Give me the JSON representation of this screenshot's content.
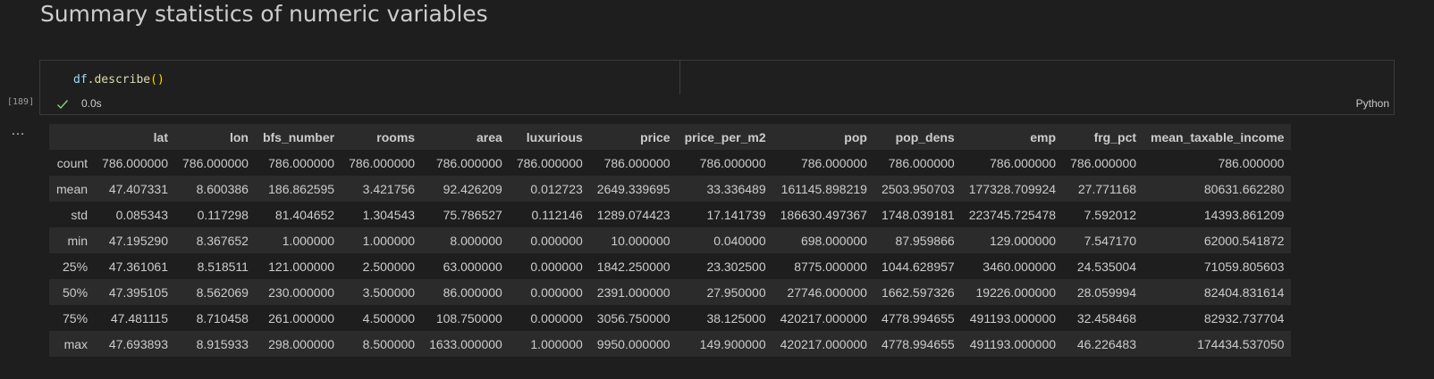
{
  "markdown": {
    "heading": "Summary statistics of numeric variables"
  },
  "cell": {
    "code": {
      "var": "df",
      "dot": ".",
      "method": "describe",
      "open_paren": "(",
      "close_paren": ")"
    },
    "execution_count": "[189]",
    "status_icon": "check-icon",
    "exec_time": "0.0s",
    "language": "Python"
  },
  "output": {
    "more_icon": "ellipsis-icon",
    "columns": [
      "lat",
      "lon",
      "bfs_number",
      "rooms",
      "area",
      "luxurious",
      "price",
      "price_per_m2",
      "pop",
      "pop_dens",
      "emp",
      "frg_pct",
      "mean_taxable_income"
    ],
    "rows": [
      {
        "label": "count",
        "values": [
          "786.000000",
          "786.000000",
          "786.000000",
          "786.000000",
          "786.000000",
          "786.000000",
          "786.000000",
          "786.000000",
          "786.000000",
          "786.000000",
          "786.000000",
          "786.000000",
          "786.000000"
        ]
      },
      {
        "label": "mean",
        "values": [
          "47.407331",
          "8.600386",
          "186.862595",
          "3.421756",
          "92.426209",
          "0.012723",
          "2649.339695",
          "33.336489",
          "161145.898219",
          "2503.950703",
          "177328.709924",
          "27.771168",
          "80631.662280"
        ]
      },
      {
        "label": "std",
        "values": [
          "0.085343",
          "0.117298",
          "81.404652",
          "1.304543",
          "75.786527",
          "0.112146",
          "1289.074423",
          "17.141739",
          "186630.497367",
          "1748.039181",
          "223745.725478",
          "7.592012",
          "14393.861209"
        ]
      },
      {
        "label": "min",
        "values": [
          "47.195290",
          "8.367652",
          "1.000000",
          "1.000000",
          "8.000000",
          "0.000000",
          "10.000000",
          "0.040000",
          "698.000000",
          "87.959866",
          "129.000000",
          "7.547170",
          "62000.541872"
        ]
      },
      {
        "label": "25%",
        "values": [
          "47.361061",
          "8.518511",
          "121.000000",
          "2.500000",
          "63.000000",
          "0.000000",
          "1842.250000",
          "23.302500",
          "8775.000000",
          "1044.628957",
          "3460.000000",
          "24.535004",
          "71059.805603"
        ]
      },
      {
        "label": "50%",
        "values": [
          "47.395105",
          "8.562069",
          "230.000000",
          "3.500000",
          "86.000000",
          "0.000000",
          "2391.000000",
          "27.950000",
          "27746.000000",
          "1662.597326",
          "19226.000000",
          "28.059994",
          "82404.831614"
        ]
      },
      {
        "label": "75%",
        "values": [
          "47.481115",
          "8.710458",
          "261.000000",
          "4.500000",
          "108.750000",
          "0.000000",
          "3056.750000",
          "38.125000",
          "420217.000000",
          "4778.994655",
          "491193.000000",
          "32.458468",
          "82932.737704"
        ]
      },
      {
        "label": "max",
        "values": [
          "47.693893",
          "8.915933",
          "298.000000",
          "8.500000",
          "1633.000000",
          "1.000000",
          "9950.000000",
          "149.900000",
          "420217.000000",
          "4778.994655",
          "491193.000000",
          "46.226483",
          "174434.537050"
        ]
      }
    ]
  }
}
